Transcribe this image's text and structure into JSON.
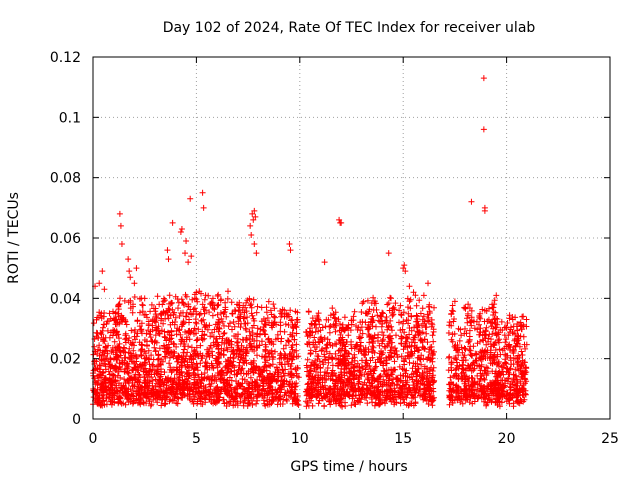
{
  "chart_data": {
    "type": "scatter",
    "title": "Day 102 of 2024, Rate Of TEC Index for receiver ulab",
    "xlabel": "GPS time / hours",
    "ylabel": "ROTI / TECUs",
    "xlim": [
      0,
      25
    ],
    "ylim": [
      0,
      0.12
    ],
    "x_ticks": [
      0,
      5,
      10,
      15,
      20,
      25
    ],
    "y_ticks": [
      0,
      0.02,
      0.04,
      0.06,
      0.08,
      0.1,
      0.12
    ],
    "x_tick_labels": [
      "0",
      "5",
      "10",
      "15",
      "20",
      "25"
    ],
    "y_tick_labels": [
      "0",
      "0.02",
      "0.04",
      "0.06",
      "0.08",
      "0.1",
      "0.12"
    ],
    "grid": true,
    "marker": "+",
    "color": "#ff0000",
    "data_gaps_hours": [
      [
        9.95,
        10.3
      ],
      [
        16.5,
        17.2
      ]
    ],
    "series": [
      {
        "values": [
          [
            0.1,
            0.044
          ],
          [
            0.3,
            0.045
          ],
          [
            0.45,
            0.049
          ],
          [
            0.55,
            0.043
          ],
          [
            1.3,
            0.068
          ],
          [
            1.35,
            0.064
          ],
          [
            1.4,
            0.058
          ],
          [
            1.7,
            0.053
          ],
          [
            1.75,
            0.049
          ],
          [
            1.8,
            0.047
          ],
          [
            2.0,
            0.045
          ],
          [
            2.1,
            0.05
          ],
          [
            3.6,
            0.056
          ],
          [
            3.65,
            0.053
          ],
          [
            3.85,
            0.065
          ],
          [
            4.25,
            0.062
          ],
          [
            4.3,
            0.063
          ],
          [
            4.5,
            0.059
          ],
          [
            4.45,
            0.055
          ],
          [
            4.6,
            0.052
          ],
          [
            4.7,
            0.073
          ],
          [
            4.75,
            0.054
          ],
          [
            5.3,
            0.075
          ],
          [
            5.35,
            0.07
          ],
          [
            7.7,
            0.068
          ],
          [
            7.75,
            0.066
          ],
          [
            7.8,
            0.069
          ],
          [
            7.85,
            0.067
          ],
          [
            7.6,
            0.064
          ],
          [
            7.65,
            0.061
          ],
          [
            7.8,
            0.058
          ],
          [
            7.9,
            0.055
          ],
          [
            9.5,
            0.058
          ],
          [
            9.55,
            0.056
          ],
          [
            11.2,
            0.052
          ],
          [
            11.9,
            0.066
          ],
          [
            11.95,
            0.065
          ],
          [
            12.0,
            0.065
          ],
          [
            14.3,
            0.055
          ],
          [
            15.0,
            0.05
          ],
          [
            15.05,
            0.051
          ],
          [
            15.1,
            0.049
          ],
          [
            15.3,
            0.044
          ],
          [
            15.5,
            0.042
          ],
          [
            16.2,
            0.045
          ],
          [
            18.3,
            0.072
          ],
          [
            18.9,
            0.113
          ],
          [
            18.9,
            0.096
          ],
          [
            18.95,
            0.07
          ],
          [
            18.95,
            0.069
          ],
          [
            19.5,
            0.041
          ],
          [
            19.3,
            0.038
          ],
          [
            0.8,
            0.035
          ],
          [
            2.5,
            0.04
          ],
          [
            3.2,
            0.038
          ],
          [
            5.8,
            0.04
          ],
          [
            6.4,
            0.037
          ],
          [
            8.6,
            0.036
          ],
          [
            9.1,
            0.035
          ],
          [
            10.9,
            0.033
          ],
          [
            12.6,
            0.034
          ],
          [
            13.5,
            0.032
          ],
          [
            14.8,
            0.036
          ],
          [
            16.0,
            0.041
          ],
          [
            17.5,
            0.039
          ],
          [
            18.0,
            0.037
          ],
          [
            20.3,
            0.033
          ],
          [
            20.8,
            0.034
          ]
        ]
      }
    ]
  }
}
